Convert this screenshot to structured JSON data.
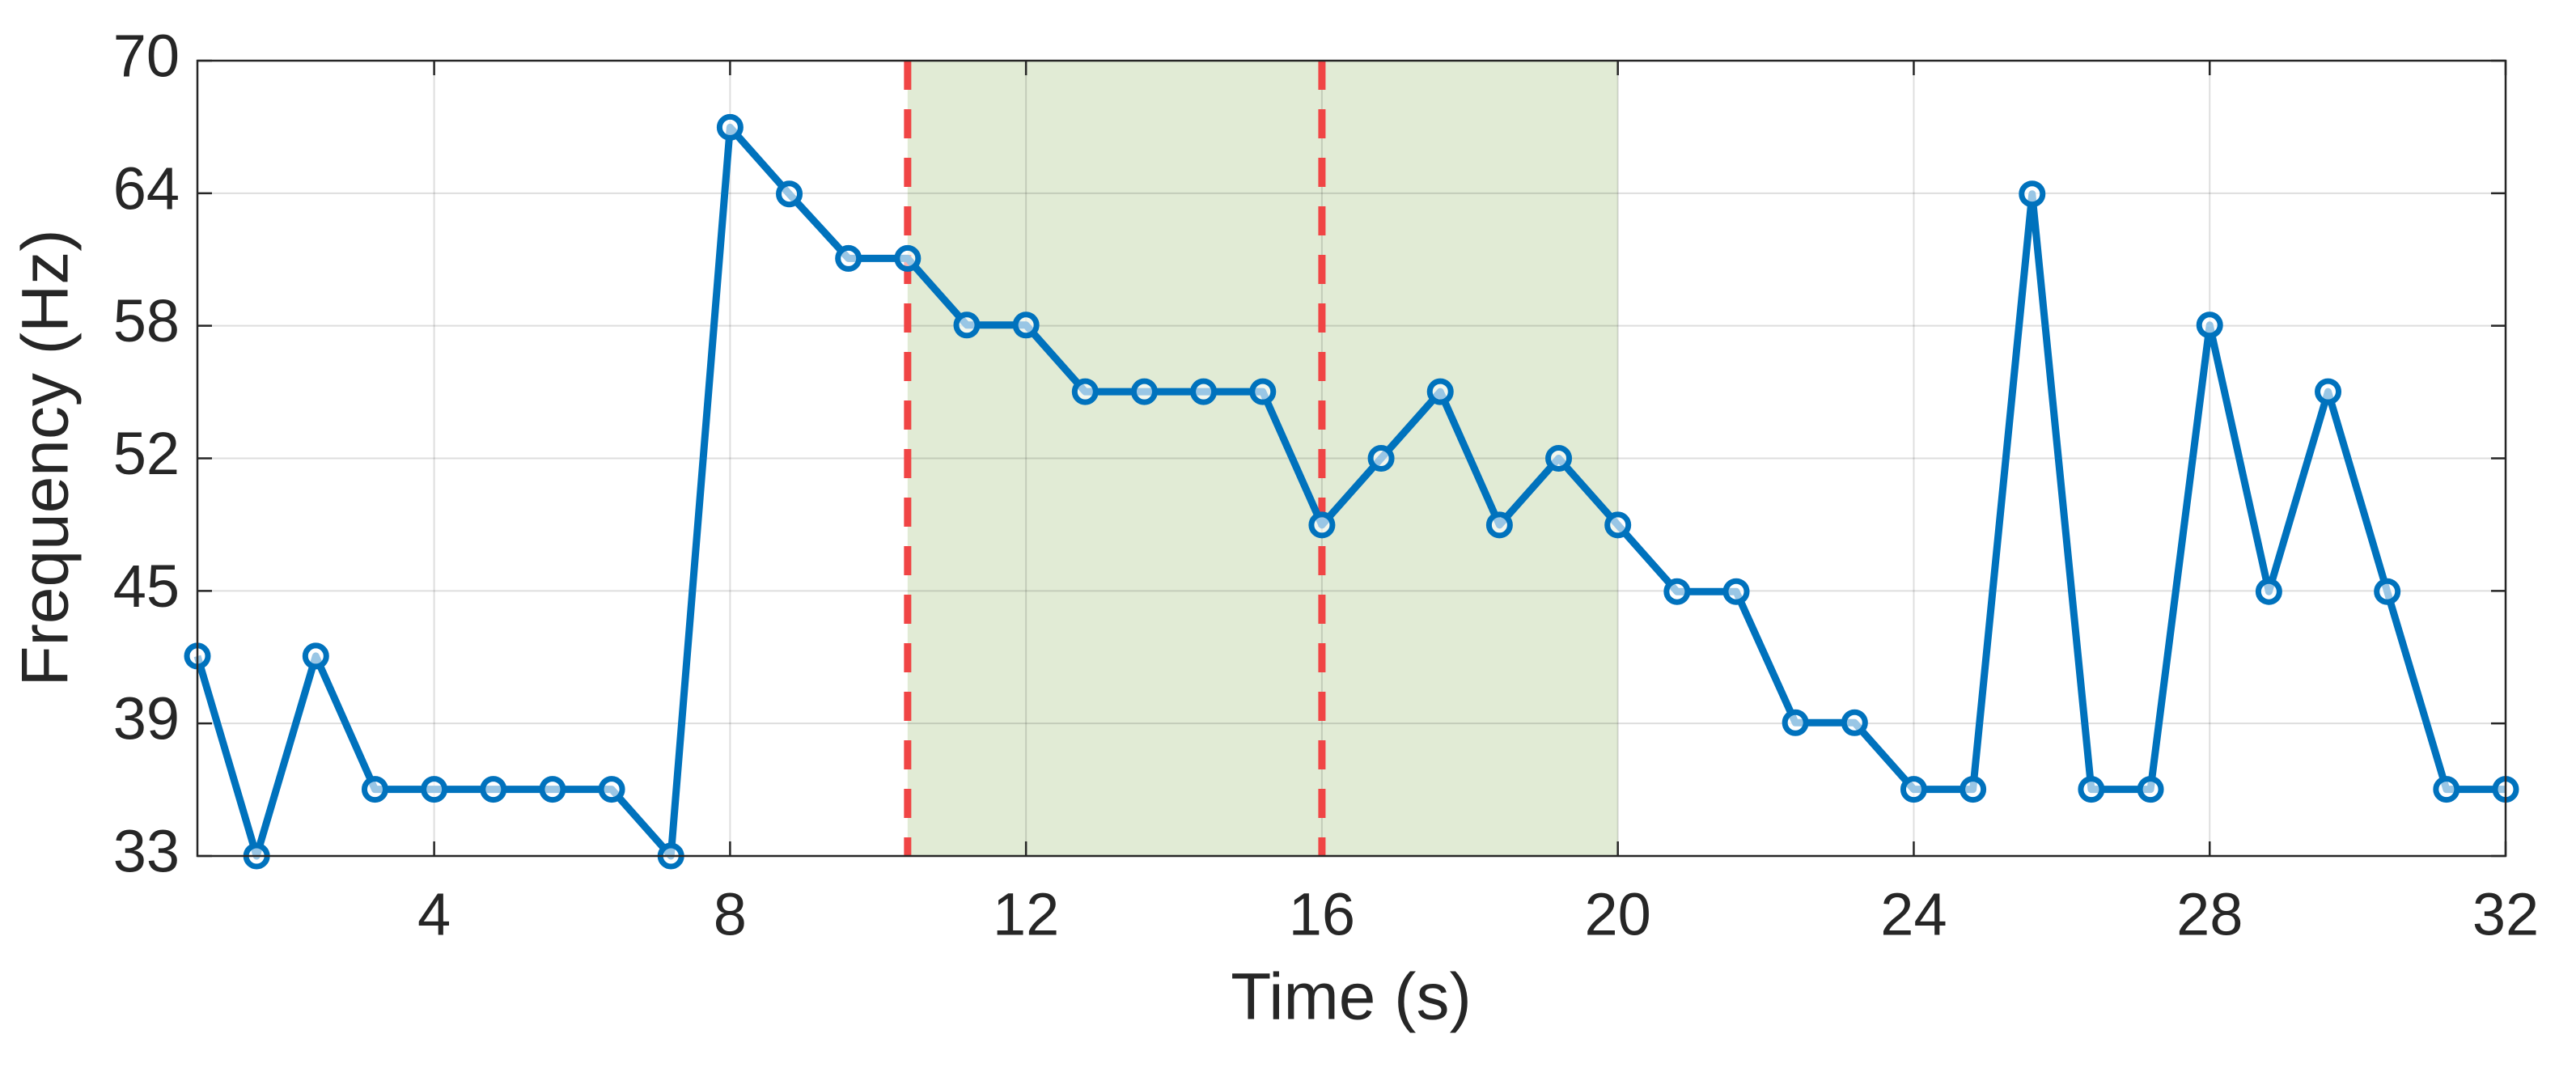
{
  "chart_data": {
    "type": "line",
    "x_label": "Time (s)",
    "y_label": "Frequency (Hz)",
    "x": [
      0.8,
      1.6,
      2.4,
      3.2,
      4.0,
      4.8,
      5.6,
      6.4,
      7.2,
      8.0,
      8.8,
      9.6,
      10.4,
      11.2,
      12.0,
      12.8,
      13.6,
      14.4,
      15.2,
      16.0,
      16.8,
      17.6,
      18.4,
      19.2,
      20.0,
      20.8,
      21.6,
      22.4,
      23.2,
      24.0,
      24.8,
      25.6,
      26.4,
      27.2,
      28.0,
      28.8,
      29.6,
      30.4,
      31.2,
      32.0
    ],
    "series": [
      {
        "color": "#0072bd",
        "values": [
          42.3,
          33,
          42.3,
          36.1,
          36.1,
          36.1,
          36.1,
          36.1,
          33,
          66.9,
          63.8,
          60.8,
          60.8,
          57.7,
          57.7,
          54.6,
          54.6,
          54.6,
          54.6,
          48.4,
          51.5,
          54.6,
          48.4,
          51.5,
          48.4,
          45.3,
          45.3,
          39.2,
          39.2,
          36.1,
          36.1,
          63.8,
          36.1,
          36.1,
          57.7,
          45.3,
          54.6,
          45.3,
          36.1,
          36.1
        ]
      }
    ],
    "xlim": [
      0.8,
      32
    ],
    "ylim": [
      33,
      70
    ],
    "xticks": [
      4,
      8,
      12,
      16,
      20,
      24,
      28,
      32
    ],
    "yticks": [
      33,
      {
        "value": 39.17,
        "label": "39"
      },
      {
        "value": 45.33,
        "label": "45"
      },
      {
        "value": 51.5,
        "label": "52"
      },
      {
        "value": 57.67,
        "label": "58"
      },
      {
        "value": 63.83,
        "label": "64"
      },
      70
    ],
    "grid": true,
    "shaded_region": {
      "x": [
        10.4,
        20
      ],
      "color": "#e1ebd5"
    },
    "vlines": {
      "x": [
        10.4,
        16
      ],
      "color": "#f04545"
    }
  }
}
